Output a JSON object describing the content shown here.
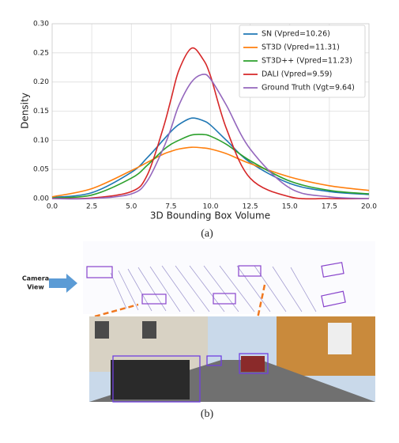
{
  "chart_data": {
    "type": "line",
    "xlabel": "3D Bounding Box Volume",
    "ylabel": "Density",
    "x": [
      0,
      2.5,
      5,
      6,
      7,
      7.5,
      8,
      8.8,
      9.5,
      10,
      11,
      12.5,
      15,
      17.5,
      20
    ],
    "series": [
      {
        "name": "SN (Vpred=10.26)",
        "color": "#1f77b4",
        "values": [
          0.002,
          0.01,
          0.045,
          0.07,
          0.1,
          0.115,
          0.127,
          0.138,
          0.134,
          0.126,
          0.1,
          0.062,
          0.026,
          0.012,
          0.007
        ]
      },
      {
        "name": "ST3D (Vpred=11.31)",
        "color": "#ff7f0e",
        "values": [
          0.003,
          0.017,
          0.048,
          0.062,
          0.076,
          0.081,
          0.085,
          0.088,
          0.087,
          0.085,
          0.077,
          0.06,
          0.037,
          0.022,
          0.014
        ]
      },
      {
        "name": "ST3D++ (Vpred=11.23)",
        "color": "#2ca02c",
        "values": [
          0.001,
          0.006,
          0.035,
          0.057,
          0.083,
          0.093,
          0.1,
          0.109,
          0.11,
          0.107,
          0.093,
          0.065,
          0.03,
          0.014,
          0.008
        ]
      },
      {
        "name": "DALI (Vpred=9.59)",
        "color": "#d62728",
        "values": [
          0,
          0.001,
          0.012,
          0.04,
          0.12,
          0.17,
          0.22,
          0.258,
          0.24,
          0.21,
          0.12,
          0.035,
          0.003,
          0,
          0
        ]
      },
      {
        "name": "Ground Truth (Vgt=9.64)",
        "color": "#9467bd",
        "values": [
          0,
          0,
          0.008,
          0.03,
          0.085,
          0.12,
          0.16,
          0.2,
          0.213,
          0.205,
          0.16,
          0.085,
          0.018,
          0.003,
          0
        ]
      }
    ],
    "xlim": [
      0,
      20
    ],
    "xticks": [
      {
        "value": 0,
        "label": "0.0"
      },
      {
        "value": 2.5,
        "label": "2.5"
      },
      {
        "value": 5,
        "label": "5.0"
      },
      {
        "value": 7.5,
        "label": "7.5"
      },
      {
        "value": 10,
        "label": "10.0"
      },
      {
        "value": 12.5,
        "label": "12.5"
      },
      {
        "value": 15,
        "label": "15.0"
      },
      {
        "value": 17.5,
        "label": "17.5"
      },
      {
        "value": 20,
        "label": "20.0"
      }
    ],
    "ylim": [
      0,
      0.3
    ],
    "yticks": [
      {
        "value": 0,
        "label": "0.00"
      },
      {
        "value": 0.05,
        "label": "0.05"
      },
      {
        "value": 0.1,
        "label": "0.10"
      },
      {
        "value": 0.15,
        "label": "0.15"
      },
      {
        "value": 0.2,
        "label": "0.20"
      },
      {
        "value": 0.25,
        "label": "0.25"
      },
      {
        "value": 0.3,
        "label": "0.30"
      }
    ],
    "grid": true,
    "legend": "upper right"
  },
  "figure": {
    "caption_a": "(a)",
    "camera_label": [
      "Camera",
      "View"
    ],
    "caption_b": "(b)"
  }
}
